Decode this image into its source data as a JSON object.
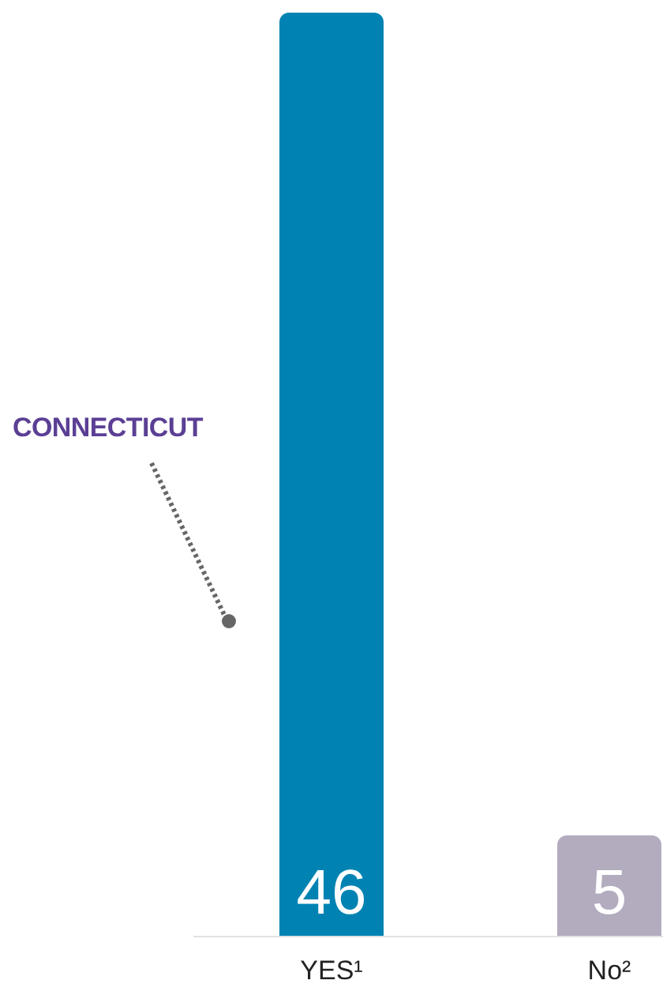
{
  "chart_data": {
    "type": "bar",
    "categories": [
      "YES¹",
      "No²"
    ],
    "values": [
      46,
      5
    ],
    "colors": [
      "#0083b3",
      "#b3acbf"
    ],
    "data_labels": true,
    "annotations": [
      "CONNECTICUT"
    ]
  }
}
